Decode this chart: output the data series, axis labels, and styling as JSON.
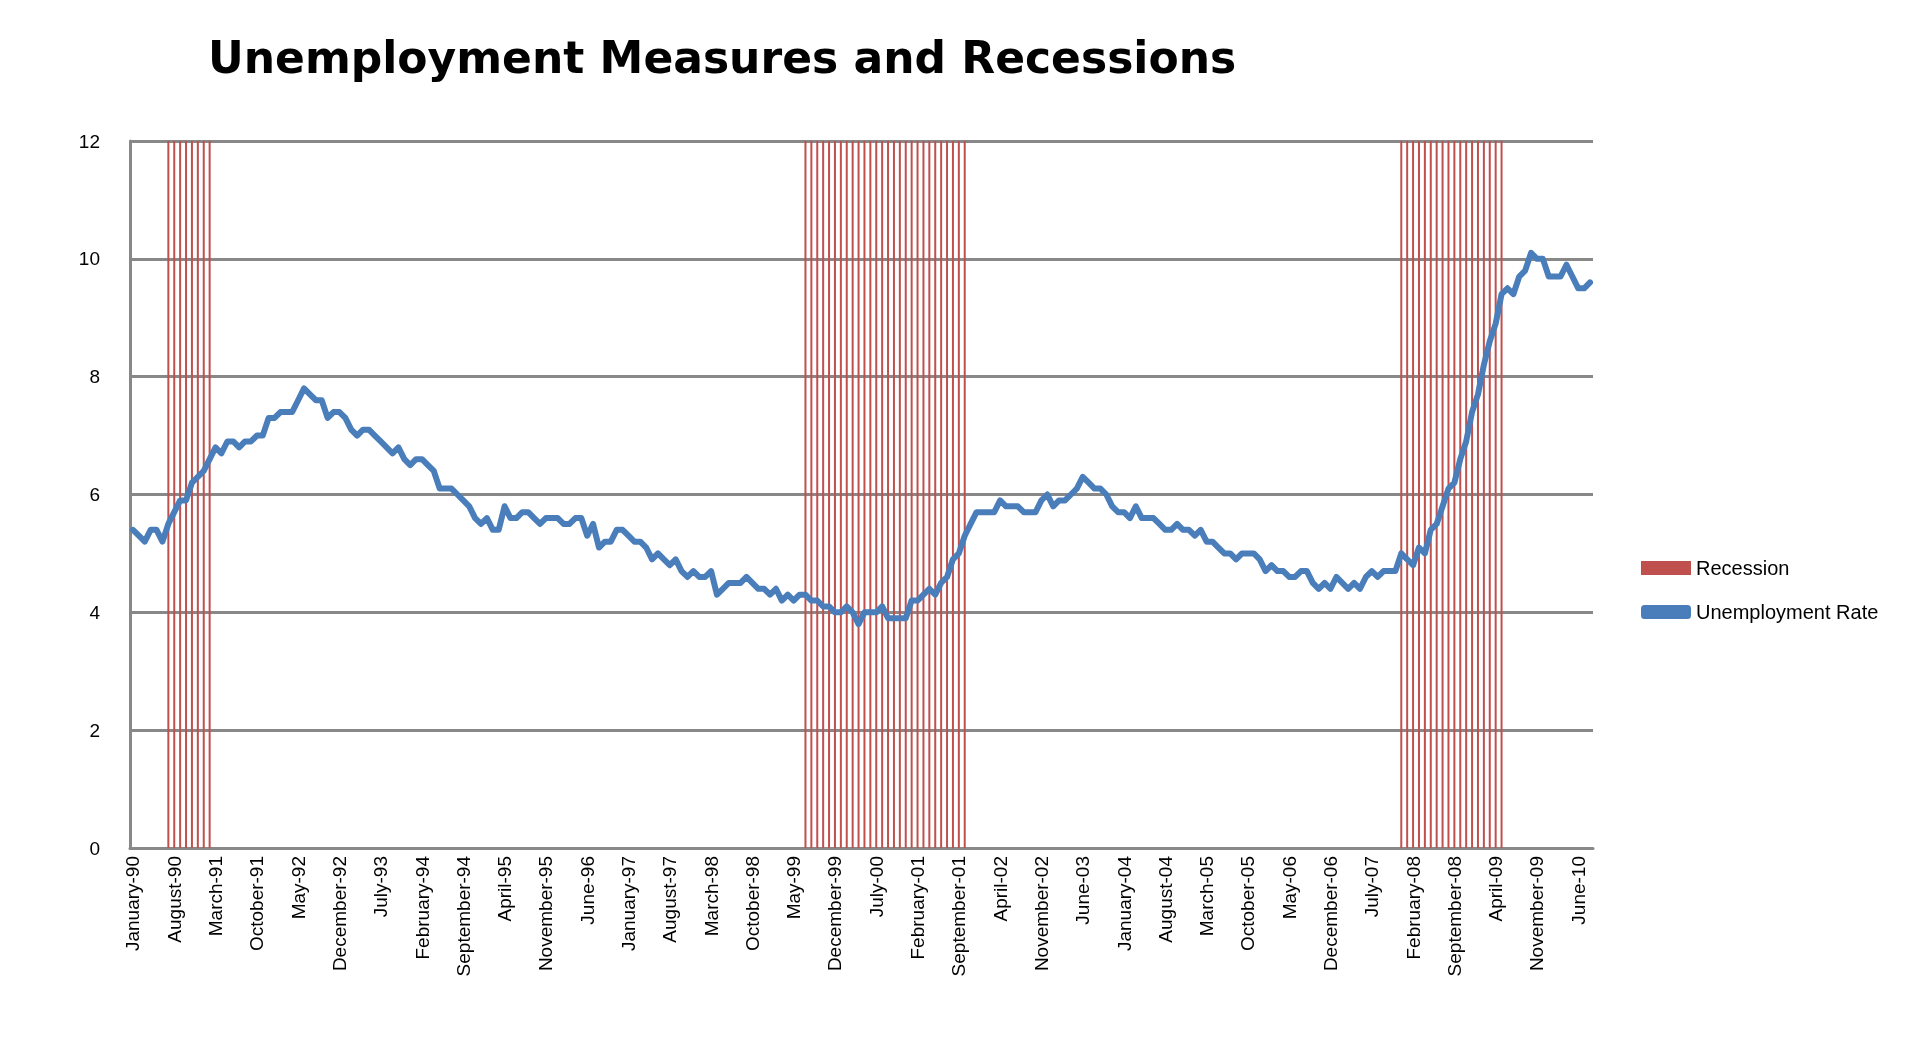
{
  "chart_data": {
    "type": "line",
    "title": "Unemployment Measures and Recessions",
    "categories": [
      "January-90",
      null,
      null,
      null,
      null,
      null,
      null,
      "August-90",
      null,
      null,
      null,
      null,
      null,
      null,
      "March-91",
      null,
      null,
      null,
      null,
      null,
      null,
      "October-91",
      null,
      null,
      null,
      null,
      null,
      null,
      "May-92",
      null,
      null,
      null,
      null,
      null,
      null,
      "December-92",
      null,
      null,
      null,
      null,
      null,
      null,
      "July-93",
      null,
      null,
      null,
      null,
      null,
      null,
      "February-94",
      null,
      null,
      null,
      null,
      null,
      null,
      "September-94",
      null,
      null,
      null,
      null,
      null,
      null,
      "April-95",
      null,
      null,
      null,
      null,
      null,
      null,
      "November-95",
      null,
      null,
      null,
      null,
      null,
      null,
      "June-96",
      null,
      null,
      null,
      null,
      null,
      null,
      "January-97",
      null,
      null,
      null,
      null,
      null,
      null,
      "August-97",
      null,
      null,
      null,
      null,
      null,
      null,
      "March-98",
      null,
      null,
      null,
      null,
      null,
      null,
      "October-98",
      null,
      null,
      null,
      null,
      null,
      null,
      "May-99",
      null,
      null,
      null,
      null,
      null,
      null,
      "December-99",
      null,
      null,
      null,
      null,
      null,
      null,
      "July-00",
      null,
      null,
      null,
      null,
      null,
      null,
      "February-01",
      null,
      null,
      null,
      null,
      null,
      null,
      "September-01",
      null,
      null,
      null,
      null,
      null,
      null,
      "April-02",
      null,
      null,
      null,
      null,
      null,
      null,
      "November-02",
      null,
      null,
      null,
      null,
      null,
      null,
      "June-03",
      null,
      null,
      null,
      null,
      null,
      null,
      "January-04",
      null,
      null,
      null,
      null,
      null,
      null,
      "August-04",
      null,
      null,
      null,
      null,
      null,
      null,
      "March-05",
      null,
      null,
      null,
      null,
      null,
      null,
      "October-05",
      null,
      null,
      null,
      null,
      null,
      null,
      "May-06",
      null,
      null,
      null,
      null,
      null,
      null,
      "December-06",
      null,
      null,
      null,
      null,
      null,
      null,
      "July-07",
      null,
      null,
      null,
      null,
      null,
      null,
      "February-08",
      null,
      null,
      null,
      null,
      null,
      null,
      "September-08",
      null,
      null,
      null,
      null,
      null,
      null,
      "April-09",
      null,
      null,
      null,
      null,
      null,
      null,
      "November-09",
      null,
      null,
      null,
      null,
      null,
      null,
      "June-10",
      null,
      null
    ],
    "series": [
      {
        "name": "Recession",
        "type": "bar",
        "color": "#c0504d",
        "values": [
          null,
          null,
          null,
          null,
          null,
          null,
          12,
          12,
          12,
          12,
          12,
          12,
          12,
          12,
          null,
          null,
          null,
          null,
          null,
          null,
          null,
          null,
          null,
          null,
          null,
          null,
          null,
          null,
          null,
          null,
          null,
          null,
          null,
          null,
          null,
          null,
          null,
          null,
          null,
          null,
          null,
          null,
          null,
          null,
          null,
          null,
          null,
          null,
          null,
          null,
          null,
          null,
          null,
          null,
          null,
          null,
          null,
          null,
          null,
          null,
          null,
          null,
          null,
          null,
          null,
          null,
          null,
          null,
          null,
          null,
          null,
          null,
          null,
          null,
          null,
          null,
          null,
          null,
          null,
          null,
          null,
          null,
          null,
          null,
          null,
          null,
          null,
          null,
          null,
          null,
          null,
          null,
          null,
          null,
          null,
          null,
          null,
          null,
          null,
          null,
          null,
          null,
          null,
          null,
          null,
          null,
          null,
          null,
          null,
          null,
          null,
          null,
          null,
          null,
          12,
          12,
          12,
          12,
          12,
          12,
          12,
          12,
          12,
          12,
          12,
          12,
          12,
          12,
          12,
          12,
          12,
          12,
          12,
          12,
          12,
          12,
          12,
          12,
          12,
          12,
          12,
          12,
          null,
          null,
          null,
          null,
          null,
          null,
          null,
          null,
          null,
          null,
          null,
          null,
          null,
          null,
          null,
          null,
          null,
          null,
          null,
          null,
          null,
          null,
          null,
          null,
          null,
          null,
          null,
          null,
          null,
          null,
          null,
          null,
          null,
          null,
          null,
          null,
          null,
          null,
          null,
          null,
          null,
          null,
          null,
          null,
          null,
          null,
          null,
          null,
          null,
          null,
          null,
          null,
          null,
          null,
          null,
          null,
          null,
          null,
          null,
          null,
          null,
          null,
          null,
          null,
          null,
          null,
          null,
          null,
          null,
          null,
          null,
          null,
          null,
          12,
          12,
          12,
          12,
          12,
          12,
          12,
          12,
          12,
          12,
          12,
          12,
          12,
          12,
          12,
          12,
          12,
          12,
          null,
          null,
          null,
          null,
          null,
          null,
          null,
          null,
          null,
          null,
          null,
          null,
          null,
          null,
          null
        ]
      },
      {
        "name": "Unemployment Rate",
        "color": "#4a7ebb",
        "values": [
          5.4,
          5.3,
          5.2,
          5.4,
          5.4,
          5.2,
          5.5,
          5.7,
          5.9,
          5.9,
          6.2,
          6.3,
          6.4,
          6.6,
          6.8,
          6.7,
          6.9,
          6.9,
          6.8,
          6.9,
          6.9,
          7.0,
          7.0,
          7.3,
          7.3,
          7.4,
          7.4,
          7.4,
          7.6,
          7.8,
          7.7,
          7.6,
          7.6,
          7.3,
          7.4,
          7.4,
          7.3,
          7.1,
          7.0,
          7.1,
          7.1,
          7.0,
          6.9,
          6.8,
          6.7,
          6.8,
          6.6,
          6.5,
          6.6,
          6.6,
          6.5,
          6.4,
          6.1,
          6.1,
          6.1,
          6.0,
          5.9,
          5.8,
          5.6,
          5.5,
          5.6,
          5.4,
          5.4,
          5.8,
          5.6,
          5.6,
          5.7,
          5.7,
          5.6,
          5.5,
          5.6,
          5.6,
          5.6,
          5.5,
          5.5,
          5.6,
          5.6,
          5.3,
          5.5,
          5.1,
          5.2,
          5.2,
          5.4,
          5.4,
          5.3,
          5.2,
          5.2,
          5.1,
          4.9,
          5.0,
          4.9,
          4.8,
          4.9,
          4.7,
          4.6,
          4.7,
          4.6,
          4.6,
          4.7,
          4.3,
          4.4,
          4.5,
          4.5,
          4.5,
          4.6,
          4.5,
          4.4,
          4.4,
          4.3,
          4.4,
          4.2,
          4.3,
          4.2,
          4.3,
          4.3,
          4.2,
          4.2,
          4.1,
          4.1,
          4.0,
          4.0,
          4.1,
          4.0,
          3.8,
          4.0,
          4.0,
          4.0,
          4.1,
          3.9,
          3.9,
          3.9,
          3.9,
          4.2,
          4.2,
          4.3,
          4.4,
          4.3,
          4.5,
          4.6,
          4.9,
          5.0,
          5.3,
          5.5,
          5.7,
          5.7,
          5.7,
          5.7,
          5.9,
          5.8,
          5.8,
          5.8,
          5.7,
          5.7,
          5.7,
          5.9,
          6.0,
          5.8,
          5.9,
          5.9,
          6.0,
          6.1,
          6.3,
          6.2,
          6.1,
          6.1,
          6.0,
          5.8,
          5.7,
          5.7,
          5.6,
          5.8,
          5.6,
          5.6,
          5.6,
          5.5,
          5.4,
          5.4,
          5.5,
          5.4,
          5.4,
          5.3,
          5.4,
          5.2,
          5.2,
          5.1,
          5.0,
          5.0,
          4.9,
          5.0,
          5.0,
          5.0,
          4.9,
          4.7,
          4.8,
          4.7,
          4.7,
          4.6,
          4.6,
          4.7,
          4.7,
          4.5,
          4.4,
          4.5,
          4.4,
          4.6,
          4.5,
          4.4,
          4.5,
          4.4,
          4.6,
          4.7,
          4.6,
          4.7,
          4.7,
          4.7,
          5.0,
          4.9,
          4.8,
          5.1,
          5.0,
          5.4,
          5.5,
          5.8,
          6.1,
          6.2,
          6.6,
          6.9,
          7.4,
          7.7,
          8.2,
          8.6,
          8.9,
          9.4,
          9.5,
          9.4,
          9.7,
          9.8,
          10.1,
          10.0,
          10.0,
          9.7,
          9.7,
          9.7,
          9.9,
          9.7,
          9.5,
          9.5,
          9.6
        ]
      }
    ],
    "ylim": [
      0,
      12
    ],
    "yticks": [
      0,
      2,
      4,
      6,
      8,
      10,
      12
    ],
    "grid": "y",
    "legend": "right",
    "marker": "none",
    "line_style": "solid"
  }
}
